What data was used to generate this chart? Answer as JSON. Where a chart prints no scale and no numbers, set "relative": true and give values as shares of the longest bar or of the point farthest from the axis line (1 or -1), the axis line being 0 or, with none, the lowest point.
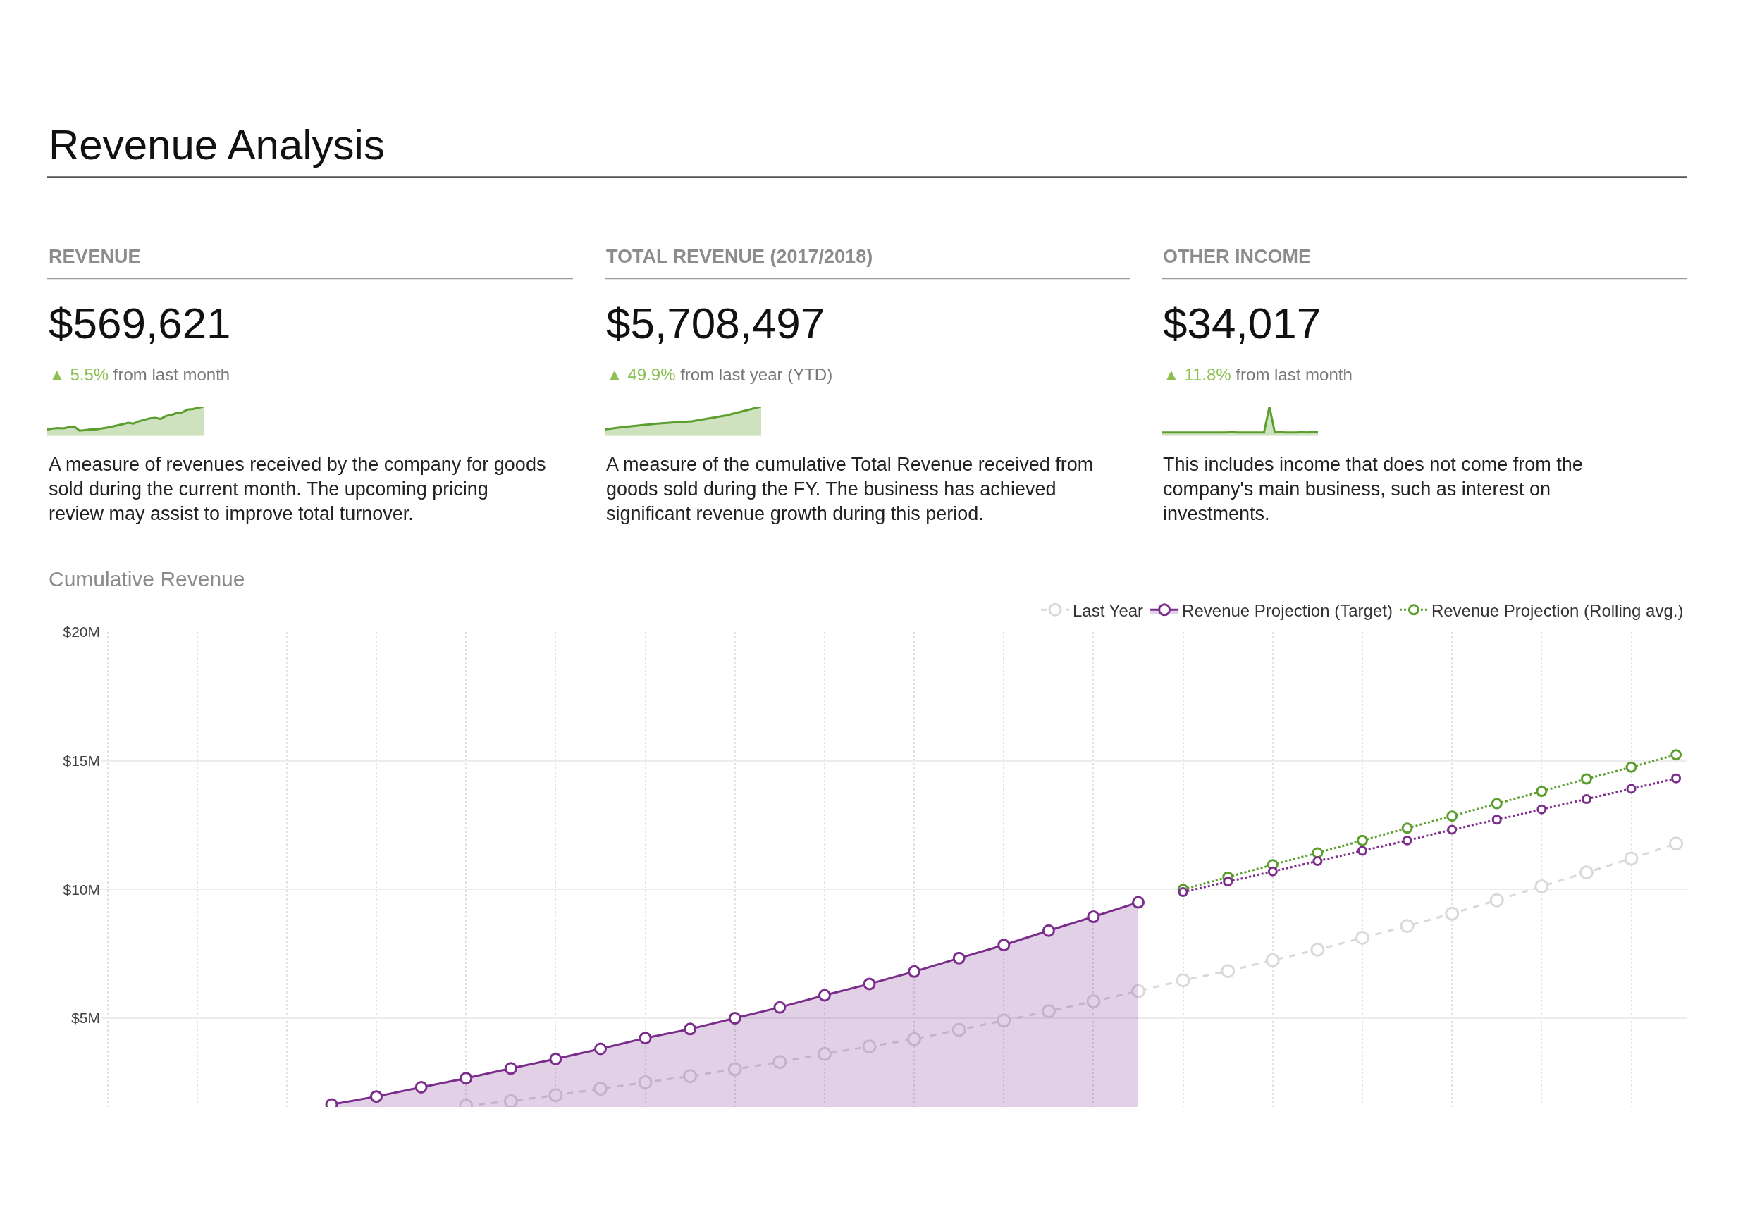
{
  "chart_data": [
    {
      "type": "other",
      "title": "Revenue Analysis"
    },
    {
      "type": "area",
      "relative": true,
      "title": "REVENUE",
      "color": "#5c9e2e",
      "annotations": [
        "$569,621",
        "▲ 5.5% from last month",
        "A measure of revenues received by the company for goods sold during the current month. The upcoming pricing review may assist to improve total turnover."
      ],
      "categories": [
        null,
        null,
        null,
        null,
        null,
        null,
        null,
        null,
        null,
        null,
        null,
        null,
        null,
        null,
        null,
        null,
        null,
        null,
        null,
        null,
        null,
        null,
        null,
        null,
        null,
        null,
        null,
        null,
        null,
        null
      ],
      "values": [
        0.22,
        0.25,
        0.27,
        0.26,
        0.3,
        0.32,
        0.18,
        0.2,
        0.22,
        0.22,
        0.25,
        0.28,
        0.32,
        0.36,
        0.4,
        0.45,
        0.42,
        0.5,
        0.55,
        0.6,
        0.62,
        0.58,
        0.68,
        0.72,
        0.78,
        0.8,
        0.9,
        0.92,
        0.96,
        1.0
      ]
    },
    {
      "type": "area",
      "relative": true,
      "title": "TOTAL REVENUE (2017/2018)",
      "color": "#5c9e2e",
      "annotations": [
        "$5,708,497",
        "▲ 49.9% from last year (YTD)",
        "A measure of the cumulative Total Revenue received from goods sold during the FY. The business has achieved significant revenue growth during this period."
      ],
      "categories": [
        null,
        null,
        null,
        null,
        null,
        null,
        null,
        null,
        null,
        null
      ],
      "values": [
        0.22,
        0.3,
        0.36,
        0.42,
        0.46,
        0.5,
        0.6,
        0.7,
        0.85,
        1.0
      ]
    },
    {
      "type": "area",
      "relative": true,
      "title": "OTHER INCOME",
      "color": "#5c9e2e",
      "annotations": [
        "$34,017",
        "▲ 11.8% from last month",
        "This includes income that does not come from the company's main business, such as interest on investments."
      ],
      "categories": [
        null,
        null,
        null,
        null,
        null,
        null,
        null,
        null,
        null,
        null,
        null,
        null,
        null,
        null,
        null,
        null,
        null,
        null,
        null,
        null,
        null,
        null,
        null,
        null,
        null,
        null,
        null,
        null,
        null,
        null
      ],
      "values": [
        0.12,
        0.12,
        0.12,
        0.12,
        0.12,
        0.12,
        0.12,
        0.12,
        0.12,
        0.12,
        0.12,
        0.12,
        0.12,
        0.13,
        0.12,
        0.12,
        0.12,
        0.12,
        0.12,
        0.12,
        1.0,
        0.12,
        0.13,
        0.12,
        0.12,
        0.12,
        0.13,
        0.12,
        0.14,
        0.13
      ]
    },
    {
      "type": "line",
      "title": "Cumulative Revenue",
      "legend": "top right",
      "grid": true,
      "marker": "circle",
      "categories": [
        null,
        null,
        null,
        null,
        null,
        null,
        null,
        null,
        null,
        null,
        null,
        null,
        null,
        null,
        null,
        null,
        null,
        null,
        null,
        null,
        null,
        null,
        null,
        null,
        null,
        null,
        null,
        null,
        null,
        null,
        null,
        null,
        null,
        null,
        null,
        null
      ],
      "ylim": [
        1.55,
        20
      ],
      "yticks": [
        {
          "value": 5,
          "label": "$5M"
        },
        {
          "value": 10,
          "label": "$10M"
        },
        {
          "value": 15,
          "label": "$15M"
        },
        {
          "value": 20,
          "label": "$20M"
        }
      ],
      "series": [
        {
          "name": "Last Year",
          "color": "#d9d9d9",
          "line_style": "dashed",
          "values": [
            null,
            null,
            null,
            null,
            null,
            null,
            null,
            null,
            1.6,
            1.78,
            2.01,
            2.26,
            2.51,
            2.75,
            3.02,
            3.3,
            3.61,
            3.9,
            4.19,
            4.55,
            4.91,
            5.27,
            5.65,
            6.05,
            6.47,
            6.83,
            7.25,
            7.66,
            8.12,
            8.58,
            9.06,
            9.58,
            10.12,
            10.66,
            11.2,
            11.78
          ]
        },
        {
          "name": "Revenue Projection (Target)",
          "type": "area",
          "color": "#7b2d8b",
          "line_style": "solid",
          "values": [
            null,
            null,
            null,
            null,
            null,
            1.65,
            1.96,
            2.32,
            2.67,
            3.05,
            3.42,
            3.81,
            4.23,
            4.58,
            5.0,
            5.42,
            5.89,
            6.33,
            6.81,
            7.33,
            7.84,
            8.4,
            8.94,
            9.5,
            null,
            null,
            null,
            null,
            null,
            null,
            null,
            null,
            null,
            null,
            null,
            null
          ]
        },
        {
          "name": "Revenue Projection (Rolling avg.)",
          "color": "#5c9e2e",
          "line_style": "dotted",
          "values": [
            null,
            null,
            null,
            null,
            null,
            null,
            null,
            null,
            null,
            null,
            null,
            null,
            null,
            null,
            null,
            null,
            null,
            null,
            null,
            null,
            null,
            null,
            null,
            null,
            10.0,
            10.48,
            10.96,
            11.42,
            11.9,
            12.38,
            12.85,
            13.33,
            13.81,
            14.29,
            14.75,
            15.23
          ]
        },
        {
          "color": "#7b2d8b",
          "line_style": "dotted",
          "values": [
            null,
            null,
            null,
            null,
            null,
            null,
            null,
            null,
            null,
            null,
            null,
            null,
            null,
            null,
            null,
            null,
            null,
            null,
            null,
            null,
            null,
            null,
            null,
            null,
            9.9,
            10.3,
            10.7,
            11.1,
            11.5,
            11.9,
            12.32,
            12.71,
            13.11,
            13.51,
            13.91,
            14.31
          ]
        }
      ]
    }
  ]
}
